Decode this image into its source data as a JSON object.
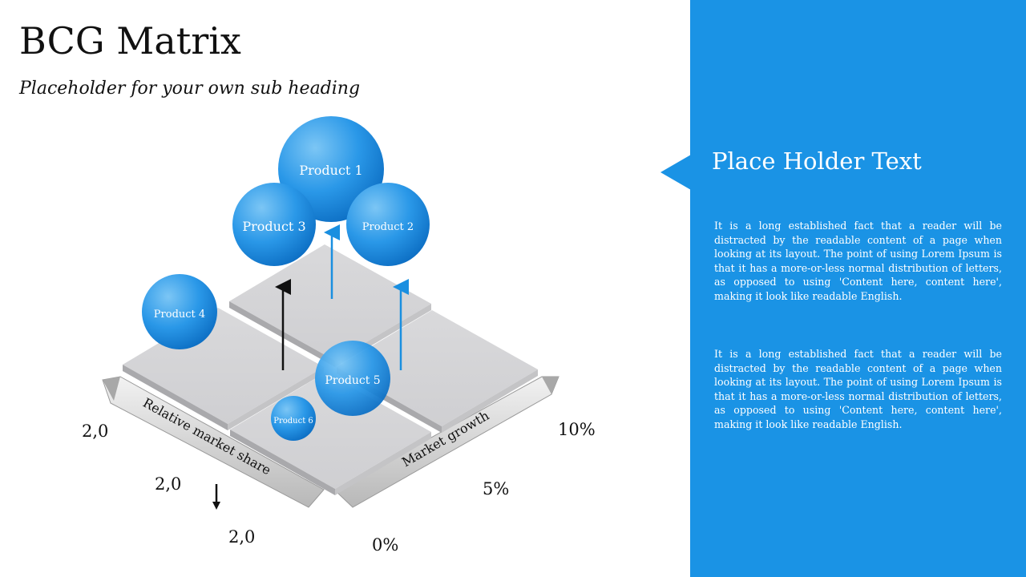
{
  "header": {
    "title": "BCG Matrix",
    "subtitle": "Placeholder for your own sub heading"
  },
  "diagram": {
    "axis_left_label": "Relative market share",
    "axis_right_label": "Market growth",
    "left_values": [
      "2,0",
      "2,0",
      "2,0"
    ],
    "right_values": [
      "10%",
      "5%",
      "0%"
    ],
    "products": [
      {
        "label": "Product 1"
      },
      {
        "label": "Product 3"
      },
      {
        "label": "Product 2"
      },
      {
        "label": "Product 4"
      },
      {
        "label": "Product 5"
      },
      {
        "label": "Product 6"
      }
    ]
  },
  "panel": {
    "heading": "Place Holder Text",
    "paragraphs": [
      "It is a long established fact that a reader will be distracted by the readable content of a page when looking at its layout. The point of using Lorem Ipsum is that it has a more-or-less normal distribution of letters, as opposed to using 'Content here, content here', making it look like readable English.",
      "It is a long established fact that a reader will be distracted by the readable content of a page when looking at its layout. The point of using Lorem Ipsum is that it has a more-or-less normal distribution of letters, as opposed to using 'Content here, content here', making it look like readable English."
    ],
    "colors": {
      "panel": "#1a93e5",
      "bubble": "#1a8fe0",
      "arrow": "#1a8fe0"
    }
  }
}
